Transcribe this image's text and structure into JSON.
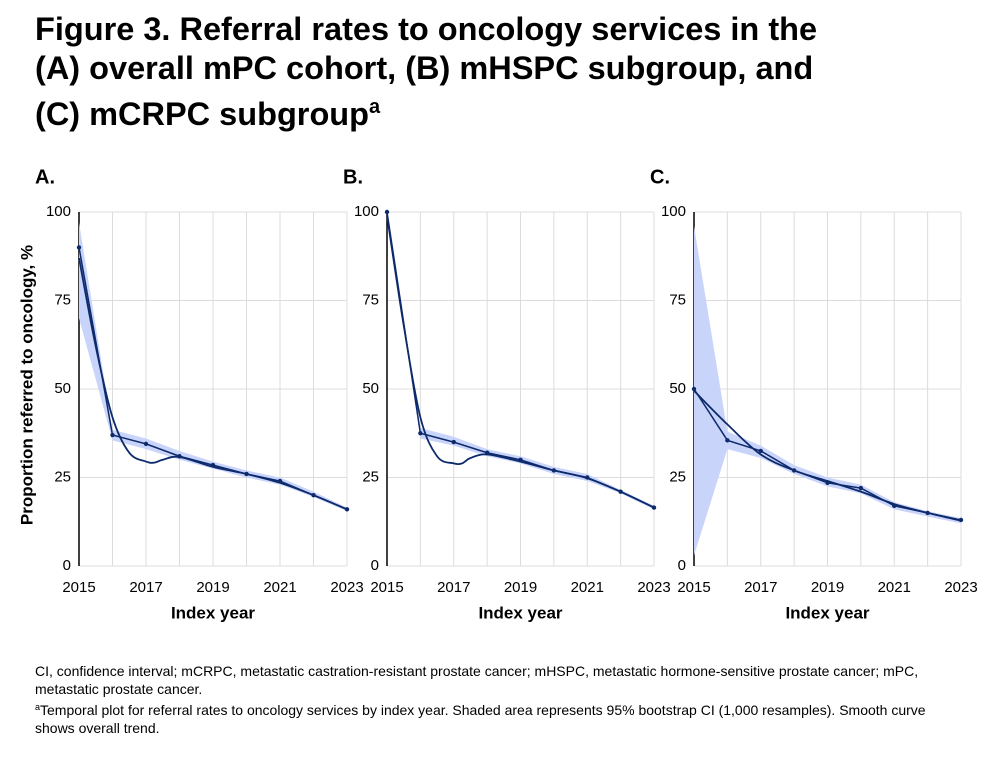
{
  "title_lines": [
    "Figure 3. Referral rates to oncology services in the",
    "(A) overall mPC cohort, (B) mHSPC subgroup, and",
    "(C) mCRPC subgroup"
  ],
  "title_mark": "a",
  "footnotes": [
    {
      "text": "CI, confidence interval; mCRPC, metastatic castration-resistant prostate cancer; mHSPC, metastatic hormone-sensitive prostate cancer; mPC, metastatic prostate cancer."
    },
    {
      "mark": "a",
      "text": "Temporal plot for referral rates to oncology services by index year. Shaded area represents 95% bootstrap CI (1,000 resamples). Smooth curve shows overall trend."
    }
  ],
  "chart_data": [
    {
      "type": "line",
      "panel": "A.",
      "y_label": "Proportion referred to oncology, %",
      "x_label": "Index year",
      "x": [
        2015,
        2016,
        2017,
        2018,
        2019,
        2020,
        2021,
        2022,
        2023
      ],
      "xlim": [
        2015,
        2023
      ],
      "xticks": [
        2015,
        2017,
        2019,
        2021,
        2023
      ],
      "ylim": [
        0,
        100
      ],
      "yticks": [
        0,
        25,
        50,
        75,
        100
      ],
      "grid": true,
      "color": "#0d2a6b",
      "band_color": "#c9d4fb",
      "observed": {
        "values": [
          90,
          37,
          34.5,
          31,
          28.5,
          26,
          24,
          20,
          16
        ]
      },
      "ci": {
        "lower": [
          70,
          35.5,
          33,
          30,
          27.5,
          25,
          23,
          19.5,
          15.5
        ],
        "upper": [
          97,
          38.5,
          36,
          32.5,
          29.5,
          27,
          25,
          21,
          16.5
        ]
      },
      "smooth": {
        "x": [
          2015,
          2015.5,
          2016,
          2016.5,
          2017,
          2017.25,
          2017.5,
          2018,
          2019,
          2020,
          2021,
          2022,
          2023
        ],
        "values": [
          87,
          62,
          42,
          32,
          29.5,
          29.2,
          30,
          30.8,
          28,
          26,
          23.5,
          20,
          16
        ]
      }
    },
    {
      "type": "line",
      "panel": "B.",
      "x_label": "Index year",
      "x": [
        2015,
        2016,
        2017,
        2018,
        2019,
        2020,
        2021,
        2022,
        2023
      ],
      "xlim": [
        2015,
        2023
      ],
      "xticks": [
        2015,
        2017,
        2019,
        2021,
        2023
      ],
      "ylim": [
        0,
        100
      ],
      "yticks": [
        0,
        25,
        50,
        75,
        100
      ],
      "grid": true,
      "color": "#0d2a6b",
      "band_color": "#c9d4fb",
      "observed": {
        "values": [
          100,
          37.5,
          35,
          32,
          30,
          27,
          25,
          21,
          16.5
        ]
      },
      "ci": {
        "lower": [
          100,
          36,
          34,
          31,
          29,
          26,
          24,
          20.5,
          16
        ],
        "upper": [
          100,
          39,
          36.5,
          33,
          31,
          28,
          26,
          21.5,
          17
        ]
      },
      "smooth": {
        "x": [
          2015,
          2015.5,
          2016,
          2016.5,
          2017,
          2017.25,
          2017.5,
          2018,
          2019,
          2020,
          2021,
          2022,
          2023
        ],
        "values": [
          99,
          68,
          42,
          31,
          29,
          29,
          30.5,
          31.5,
          29.5,
          27,
          24.8,
          21,
          16.5
        ]
      }
    },
    {
      "type": "line",
      "panel": "C.",
      "x_label": "Index year",
      "x": [
        2015,
        2016,
        2017,
        2018,
        2019,
        2020,
        2021,
        2022,
        2023
      ],
      "xlim": [
        2015,
        2023
      ],
      "xticks": [
        2015,
        2017,
        2019,
        2021,
        2023
      ],
      "ylim": [
        0,
        100
      ],
      "yticks": [
        0,
        25,
        50,
        75,
        100
      ],
      "grid": true,
      "color": "#0d2a6b",
      "band_color": "#c9d4fb",
      "observed": {
        "values": [
          50,
          35.5,
          32.5,
          27,
          23.5,
          22,
          17,
          15,
          13
        ]
      },
      "ci": {
        "lower": [
          3,
          33,
          30.5,
          26,
          22.5,
          20.5,
          16,
          14,
          12
        ],
        "upper": [
          96,
          38,
          34,
          28.5,
          25,
          23,
          18,
          15.5,
          13.5
        ]
      },
      "smooth": {
        "x": [
          2015,
          2016,
          2017,
          2018,
          2019,
          2020,
          2021,
          2022,
          2023
        ],
        "values": [
          49.5,
          40,
          31.5,
          27,
          24,
          21,
          17.5,
          15,
          12.8
        ]
      }
    }
  ]
}
